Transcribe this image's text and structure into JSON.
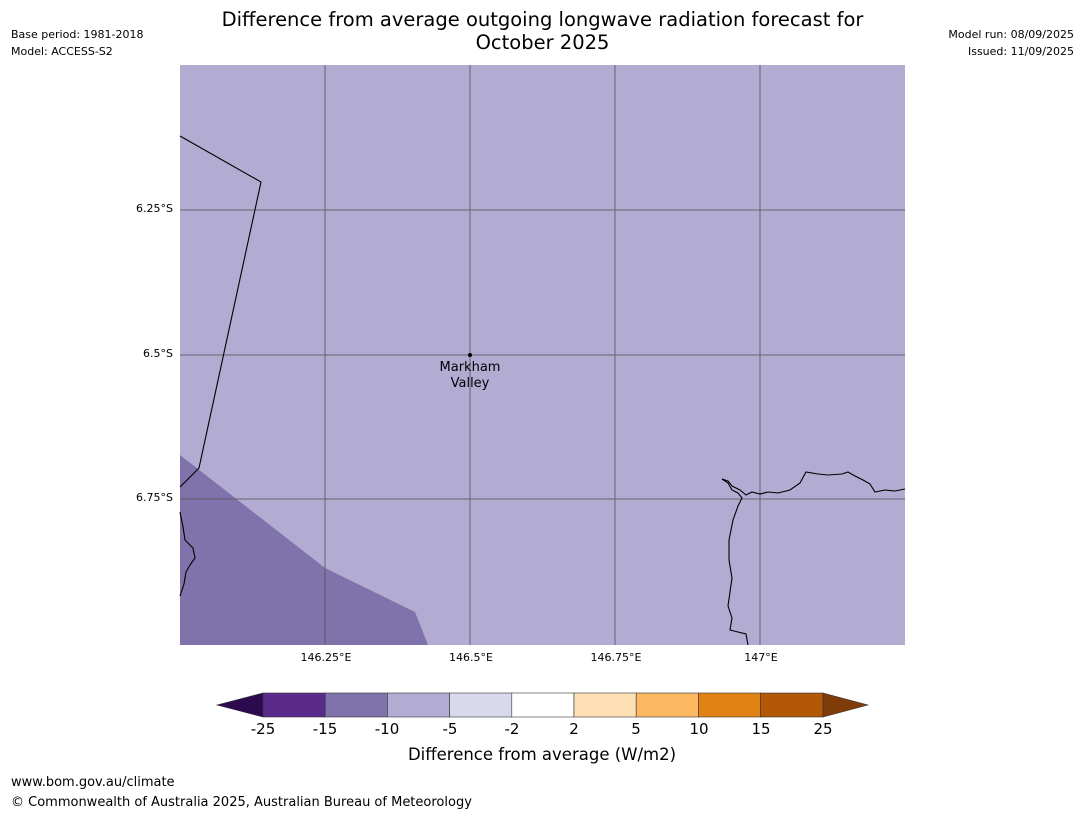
{
  "header": {
    "title_line1": "Difference from average outgoing longwave radiation forecast for",
    "title_line2": "October 2025",
    "base_period": "Base period: 1981-2018",
    "model": "Model: ACCESS-S2",
    "model_run": "Model run: 08/09/2025",
    "issued": "Issued: 11/09/2025"
  },
  "map": {
    "latitude_labels": [
      "6.25°S",
      "6.5°S",
      "6.75°S"
    ],
    "longitude_labels": [
      "146.25°E",
      "146.5°E",
      "146.75°E",
      "147°E"
    ],
    "place": {
      "name_line1": "Markham",
      "name_line2": "Valley"
    },
    "fill_categories": {
      "main": "-10 to -5",
      "lower_left": "-15 to -10"
    }
  },
  "legend": {
    "title": "Difference from average (W/m2)",
    "ticks": [
      "-25",
      "-15",
      "-10",
      "-5",
      "-2",
      "2",
      "5",
      "10",
      "15",
      "25"
    ],
    "colors": [
      "#2d0a4e",
      "#5a2a8a",
      "#8073ac",
      "#b2abd2",
      "#d8daeb",
      "#ffffff",
      "#fee0b6",
      "#fdb863",
      "#e08214",
      "#b35806",
      "#7f3b08"
    ]
  },
  "footer": {
    "url": "www.bom.gov.au/climate",
    "copyright": "© Commonwealth of Australia 2025, Australian Bureau of Meteorology"
  }
}
